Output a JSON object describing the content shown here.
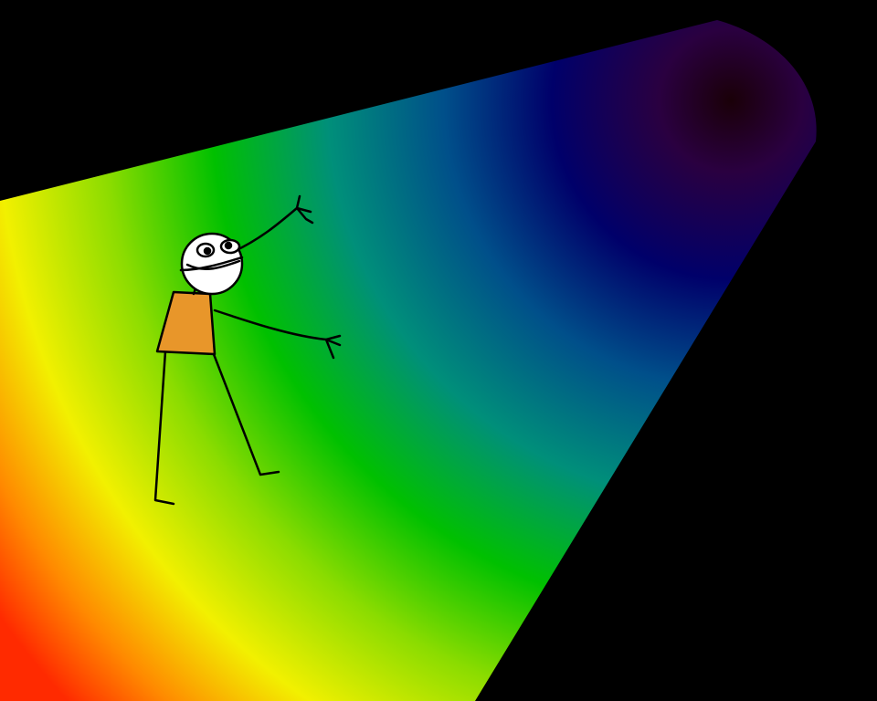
{
  "scene": {
    "background_color": "#000000",
    "beam": {
      "gradient_stops": [
        {
          "offset": 0.0,
          "color": "#ff2a00"
        },
        {
          "offset": 0.08,
          "color": "#ff8a00"
        },
        {
          "offset": 0.18,
          "color": "#f2f000"
        },
        {
          "offset": 0.3,
          "color": "#8bdc00"
        },
        {
          "offset": 0.42,
          "color": "#00c000"
        },
        {
          "offset": 0.55,
          "color": "#008f7a"
        },
        {
          "offset": 0.68,
          "color": "#004f8a"
        },
        {
          "offset": 0.8,
          "color": "#00006a"
        },
        {
          "offset": 0.92,
          "color": "#2a0040"
        },
        {
          "offset": 1.0,
          "color": "#1a0008"
        }
      ]
    },
    "figure": {
      "skin_color": "#ffffff",
      "shirt_color": "#e8962a",
      "outline_color": "#000000"
    }
  }
}
